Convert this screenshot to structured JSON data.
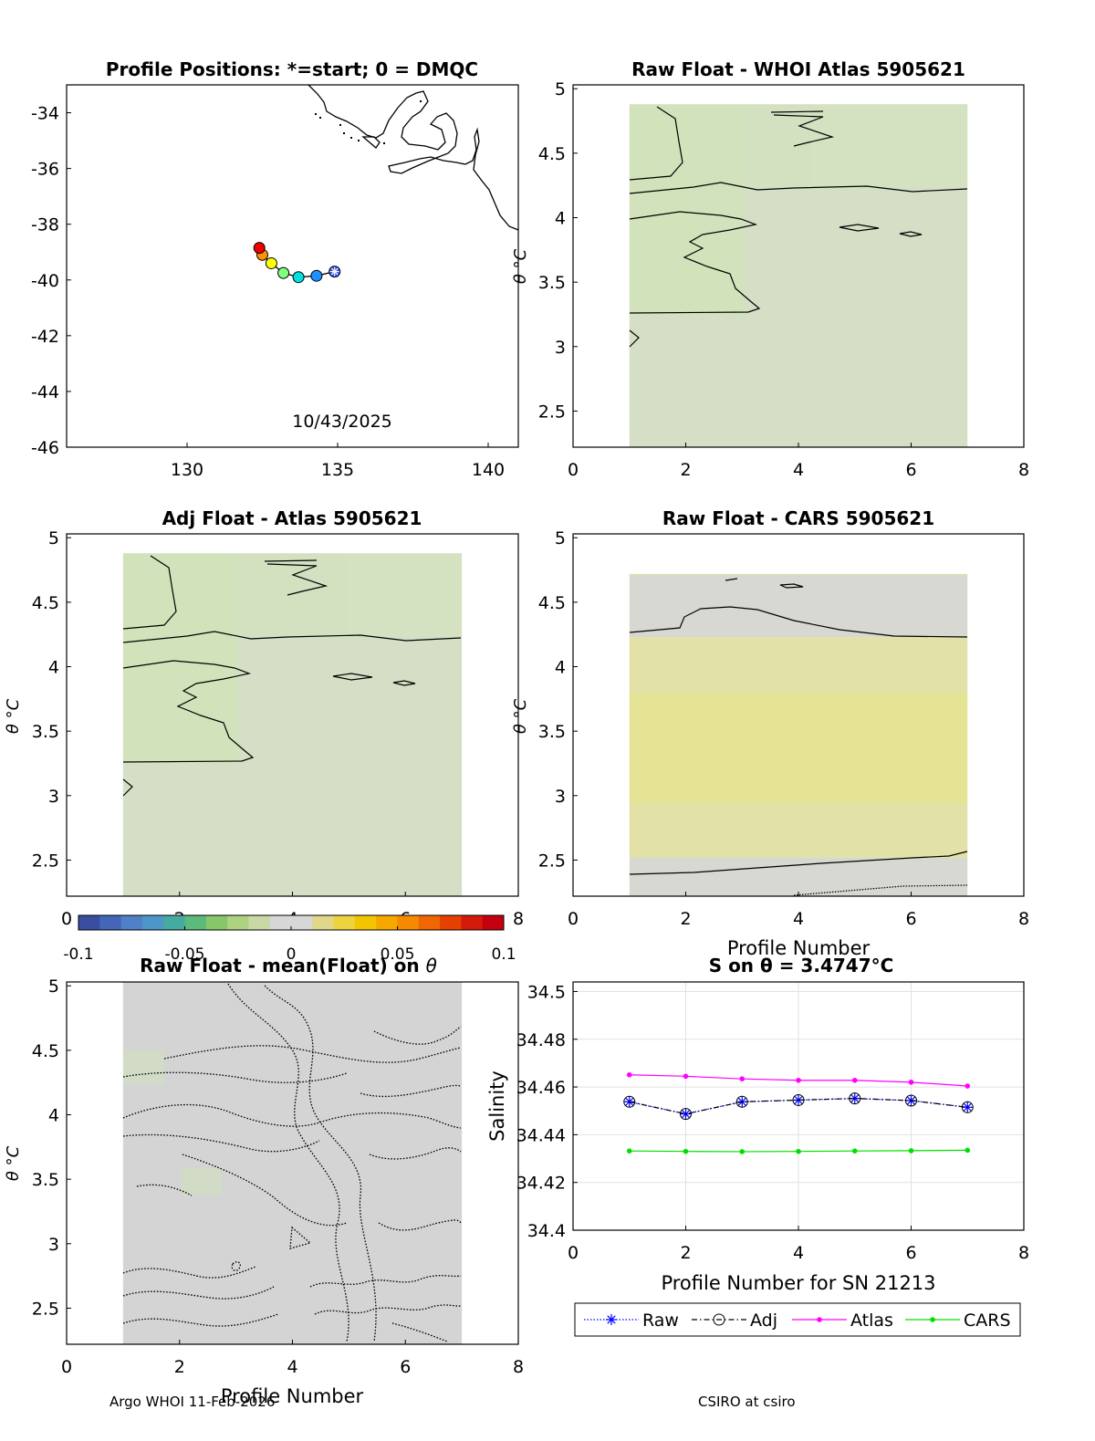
{
  "panel_titles": {
    "map": "Profile Positions: *=start; 0 = DMQC",
    "raw_atlas": "Raw Float - WHOI Atlas  5905621",
    "adj_atlas": "Adj Float - Atlas  5905621",
    "raw_cars": "Raw Float - CARS  5905621",
    "raw_mean_prefix": "Raw Float - mean(Float) on ",
    "s_on_theta": "S on θ = 3.4747°C"
  },
  "axis_labels": {
    "theta": "θ °C",
    "theta_cut": "θ °C",
    "profile_number": "Profile Number",
    "salinity": "Salinity",
    "profile_number_sn": "Profile Number for SN 21213"
  },
  "map_date": "10/43/2025",
  "footer": {
    "left": "Argo WHOI 11-Feb-2026",
    "right": "CSIRO at csiro"
  },
  "colors": {
    "raw": "#0000ff",
    "adj": "#000000",
    "atlas": "#ff00ff",
    "cars": "#00e000",
    "land": "#000000"
  },
  "chart_data": [
    {
      "type": "scatter",
      "id": "map",
      "title": "Profile Positions: *=start; 0 = DMQC",
      "xlim": [
        126,
        141
      ],
      "ylim": [
        -46,
        -33
      ],
      "xticks": [
        130,
        135,
        140
      ],
      "yticks": [
        -34,
        -36,
        -38,
        -40,
        -42,
        -44,
        -46
      ],
      "positions": [
        {
          "lon": 134.9,
          "lat": -39.7,
          "color": "#3050ff",
          "marker": "start"
        },
        {
          "lon": 134.3,
          "lat": -39.85,
          "color": "#1e90ff"
        },
        {
          "lon": 133.7,
          "lat": -39.9,
          "color": "#00e0e0"
        },
        {
          "lon": 133.2,
          "lat": -39.75,
          "color": "#80ff80"
        },
        {
          "lon": 132.8,
          "lat": -39.4,
          "color": "#ffff00"
        },
        {
          "lon": 132.5,
          "lat": -39.1,
          "color": "#ff9000"
        },
        {
          "lon": 132.4,
          "lat": -38.85,
          "color": "#ee0000"
        }
      ]
    },
    {
      "type": "heatmap",
      "id": "raw_atlas",
      "xlim": [
        0,
        8
      ],
      "ylim": [
        2.22,
        5.03
      ],
      "xticks": [
        0,
        2,
        4,
        6,
        8
      ],
      "yticks": [
        2.5,
        3,
        3.5,
        4,
        4.5,
        5
      ],
      "x_range": [
        1,
        7
      ],
      "y_range": [
        2.22,
        4.88
      ],
      "fill": "#d5dfc6"
    },
    {
      "type": "heatmap",
      "id": "adj_atlas",
      "xlim": [
        0,
        8
      ],
      "ylim": [
        2.22,
        5.03
      ],
      "xticks": [
        0,
        2,
        4,
        6,
        8
      ],
      "yticks": [
        2.5,
        3,
        3.5,
        4,
        4.5,
        5
      ],
      "x_range": [
        1,
        7
      ],
      "y_range": [
        2.22,
        4.88
      ],
      "fill": "#d5dfc6"
    },
    {
      "type": "heatmap",
      "id": "raw_cars",
      "xlim": [
        0,
        8
      ],
      "ylim": [
        2.22,
        5.03
      ],
      "xticks": [
        0,
        2,
        4,
        6,
        8
      ],
      "yticks": [
        2.5,
        3,
        3.5,
        4,
        4.5,
        5
      ],
      "x_range": [
        1,
        7
      ],
      "y_range": [
        2.22,
        4.72
      ],
      "fill": "#e2e2a8"
    },
    {
      "type": "heatmap",
      "id": "raw_mean",
      "xlim": [
        0,
        8
      ],
      "ylim": [
        2.22,
        5.03
      ],
      "xticks": [
        0,
        2,
        4,
        6,
        8
      ],
      "yticks": [
        2.5,
        3,
        3.5,
        4,
        4.5,
        5
      ],
      "x_range": [
        1,
        7
      ],
      "y_range": [
        2.22,
        5.03
      ],
      "fill": "#d4d4d4"
    },
    {
      "type": "line",
      "id": "salinity",
      "title": "S on θ = 3.4747°C",
      "xlabel": "Profile Number for SN 21213",
      "ylabel": "Salinity",
      "xlim": [
        0,
        8
      ],
      "ylim": [
        34.4,
        34.504
      ],
      "xticks": [
        0,
        2,
        4,
        6,
        8
      ],
      "yticks": [
        34.4,
        34.42,
        34.44,
        34.46,
        34.48,
        34.5
      ],
      "grid": true,
      "x": [
        1,
        2,
        3,
        4,
        5,
        6,
        7
      ],
      "series": [
        {
          "name": "Raw",
          "values": [
            34.4538,
            34.4487,
            34.4538,
            34.4545,
            34.4552,
            34.4543,
            34.4515
          ]
        },
        {
          "name": "Adj",
          "values": [
            34.4538,
            34.4487,
            34.4538,
            34.4545,
            34.4552,
            34.4543,
            34.4515
          ]
        },
        {
          "name": "Atlas",
          "values": [
            34.4651,
            34.4645,
            34.4634,
            34.4628,
            34.4628,
            34.462,
            34.4604
          ]
        },
        {
          "name": "CARS",
          "values": [
            34.4332,
            34.433,
            34.4329,
            34.433,
            34.4332,
            34.4333,
            34.4335
          ]
        }
      ],
      "legend": [
        "Raw",
        "Adj",
        "Atlas",
        "CARS"
      ]
    }
  ],
  "colorbar": {
    "range": [
      -0.1,
      0.1
    ],
    "ticks": [
      "-0.1",
      "-0.05",
      "0",
      "0.05",
      "0.1"
    ],
    "colors": [
      "#3a4ea0",
      "#4466b8",
      "#4f80c8",
      "#4c97c8",
      "#45aaa0",
      "#5cba7a",
      "#86c76a",
      "#aed27f",
      "#c8d9a6",
      "#d7d7d7",
      "#d7d7d7",
      "#e0d78a",
      "#ecd340",
      "#f3c400",
      "#f5a800",
      "#f58a00",
      "#f06600",
      "#e54000",
      "#d41a0a",
      "#c40010"
    ]
  }
}
